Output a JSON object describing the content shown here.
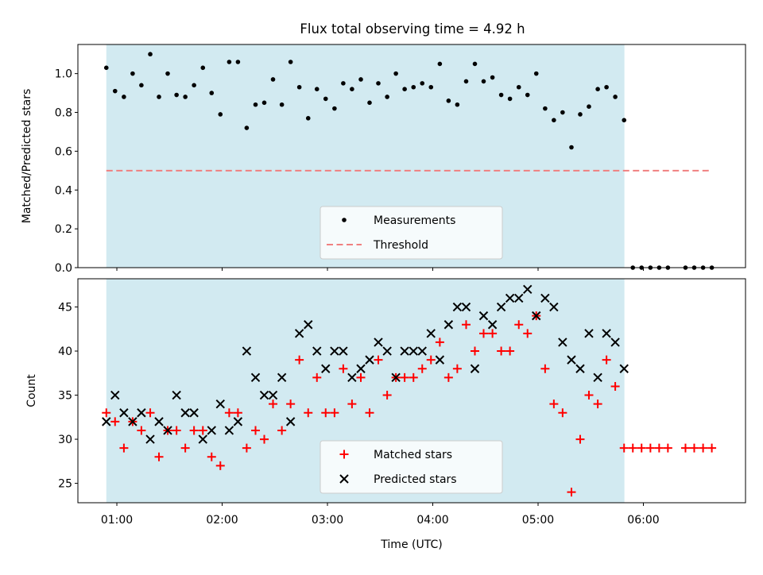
{
  "chart_data": {
    "type": "scatter",
    "title": "Flux total observing time = 4.92 h",
    "shaded_region_color": "#add8e6",
    "x_tick_labels": [
      "01:00",
      "02:00",
      "03:00",
      "04:00",
      "05:00",
      "06:00"
    ],
    "x_tick_values_h": [
      1,
      2,
      3,
      4,
      5,
      6
    ],
    "xlabel": "Time (UTC)",
    "xlim_h": [
      0.63,
      6.97
    ],
    "shaded_xrange_h": [
      0.9,
      5.82
    ],
    "panels": [
      {
        "ylabel": "Matched/Predicted stars",
        "ylim": [
          0,
          1.15
        ],
        "y_ticks": [
          0.0,
          0.2,
          0.4,
          0.6,
          0.8,
          1.0
        ],
        "y_tick_labels": [
          "0.0",
          "0.2",
          "0.4",
          "0.6",
          "0.8",
          "1.0"
        ],
        "legend": [
          "Measurements",
          "Threshold"
        ],
        "threshold": {
          "name": "Threshold",
          "value": 0.5,
          "x_range_h": [
            0.9,
            6.65
          ],
          "color": "#f08080"
        },
        "series": [
          {
            "name": "Measurements",
            "marker": "dot",
            "color": "#000000",
            "x": [
              0.9,
              0.983,
              1.067,
              1.15,
              1.233,
              1.317,
              1.4,
              1.483,
              1.567,
              1.65,
              1.733,
              1.817,
              1.9,
              1.983,
              2.067,
              2.15,
              2.233,
              2.317,
              2.4,
              2.483,
              2.567,
              2.65,
              2.733,
              2.817,
              2.9,
              2.983,
              3.067,
              3.15,
              3.233,
              3.317,
              3.4,
              3.483,
              3.567,
              3.65,
              3.733,
              3.817,
              3.9,
              3.983,
              4.067,
              4.15,
              4.233,
              4.317,
              4.4,
              4.483,
              4.567,
              4.65,
              4.733,
              4.817,
              4.9,
              4.983,
              5.067,
              5.15,
              5.233,
              5.317,
              5.4,
              5.483,
              5.567,
              5.65,
              5.733,
              5.817,
              5.9,
              5.983,
              6.067,
              6.15,
              6.233,
              6.4,
              6.483,
              6.567,
              6.65
            ],
            "y": [
              1.03,
              0.91,
              0.88,
              1.0,
              0.94,
              1.1,
              0.88,
              1.0,
              0.89,
              0.88,
              0.94,
              1.03,
              0.9,
              0.79,
              1.06,
              1.06,
              0.72,
              0.84,
              0.85,
              0.97,
              0.84,
              1.06,
              0.93,
              0.77,
              0.92,
              0.87,
              0.82,
              0.95,
              0.92,
              0.97,
              0.85,
              0.95,
              0.88,
              1.0,
              0.92,
              0.93,
              0.95,
              0.93,
              1.05,
              0.86,
              0.84,
              0.96,
              1.05,
              0.96,
              0.98,
              0.89,
              0.87,
              0.93,
              0.89,
              1.0,
              0.82,
              0.76,
              0.8,
              0.62,
              0.79,
              0.83,
              0.92,
              0.93,
              0.88,
              0.76,
              0.0,
              0.0,
              0.0,
              0.0,
              0.0,
              0.0,
              0.0,
              0.0,
              0.0
            ]
          }
        ]
      },
      {
        "ylabel": "Count",
        "ylim": [
          22.8,
          48.2
        ],
        "y_ticks": [
          25,
          30,
          35,
          40,
          45
        ],
        "y_tick_labels": [
          "25",
          "30",
          "35",
          "40",
          "45"
        ],
        "legend": [
          "Matched stars",
          "Predicted stars"
        ],
        "series": [
          {
            "name": "Matched stars",
            "marker": "plus",
            "color": "#ff0000",
            "x": [
              0.9,
              0.983,
              1.067,
              1.15,
              1.233,
              1.317,
              1.4,
              1.483,
              1.567,
              1.65,
              1.733,
              1.817,
              1.9,
              1.983,
              2.067,
              2.15,
              2.233,
              2.317,
              2.4,
              2.483,
              2.567,
              2.65,
              2.733,
              2.817,
              2.9,
              2.983,
              3.067,
              3.15,
              3.233,
              3.317,
              3.4,
              3.483,
              3.567,
              3.65,
              3.733,
              3.817,
              3.9,
              3.983,
              4.067,
              4.15,
              4.233,
              4.317,
              4.4,
              4.483,
              4.567,
              4.65,
              4.733,
              4.817,
              4.9,
              4.983,
              5.067,
              5.15,
              5.233,
              5.317,
              5.4,
              5.483,
              5.567,
              5.65,
              5.733,
              5.817,
              5.9,
              5.983,
              6.067,
              6.15,
              6.233,
              6.4,
              6.483,
              6.567,
              6.65
            ],
            "y": [
              33,
              32,
              29,
              32,
              31,
              33,
              28,
              31,
              31,
              29,
              31,
              31,
              28,
              27,
              33,
              33,
              29,
              31,
              30,
              34,
              31,
              34,
              39,
              33,
              37,
              33,
              33,
              38,
              34,
              37,
              33,
              39,
              35,
              37,
              37,
              37,
              38,
              39,
              41,
              37,
              38,
              43,
              40,
              42,
              42,
              40,
              40,
              43,
              42,
              44,
              38,
              34,
              33,
              24,
              30,
              35,
              34,
              39,
              36,
              29,
              29,
              29,
              29,
              29,
              29,
              29,
              29,
              29,
              29
            ]
          },
          {
            "name": "Predicted stars",
            "marker": "x",
            "color": "#000000",
            "x": [
              0.9,
              0.983,
              1.067,
              1.15,
              1.233,
              1.317,
              1.4,
              1.483,
              1.567,
              1.65,
              1.733,
              1.817,
              1.9,
              1.983,
              2.067,
              2.15,
              2.233,
              2.317,
              2.4,
              2.483,
              2.567,
              2.65,
              2.733,
              2.817,
              2.9,
              2.983,
              3.067,
              3.15,
              3.233,
              3.317,
              3.4,
              3.483,
              3.567,
              3.65,
              3.733,
              3.817,
              3.9,
              3.983,
              4.067,
              4.15,
              4.233,
              4.317,
              4.4,
              4.483,
              4.567,
              4.65,
              4.733,
              4.817,
              4.9,
              4.983,
              5.067,
              5.15,
              5.233,
              5.317,
              5.4,
              5.483,
              5.567,
              5.65,
              5.733,
              5.817
            ],
            "y": [
              32,
              35,
              33,
              32,
              33,
              30,
              32,
              31,
              35,
              33,
              33,
              30,
              31,
              34,
              31,
              32,
              40,
              37,
              35,
              35,
              37,
              32,
              42,
              43,
              40,
              38,
              40,
              40,
              37,
              38,
              39,
              41,
              40,
              37,
              40,
              40,
              40,
              42,
              39,
              43,
              45,
              45,
              38,
              44,
              43,
              45,
              46,
              46,
              47,
              44,
              46,
              45,
              41,
              39,
              38,
              42,
              37,
              42,
              41,
              38
            ]
          }
        ]
      }
    ]
  }
}
